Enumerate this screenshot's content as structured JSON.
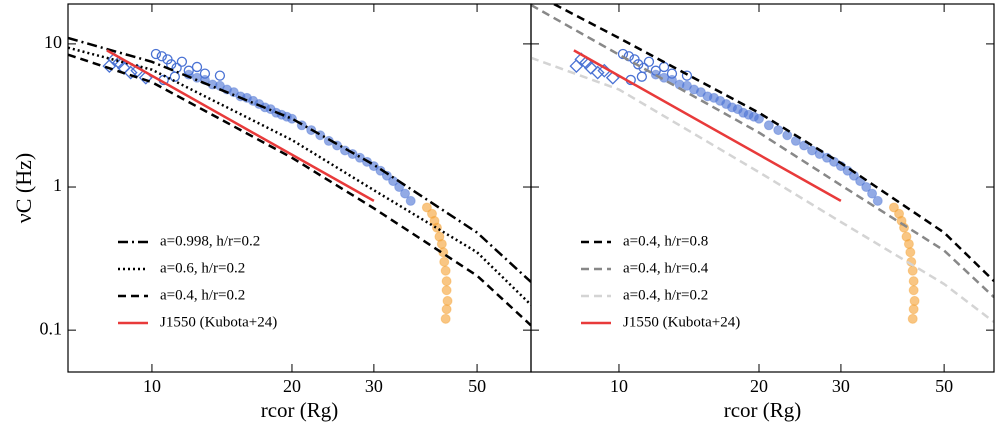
{
  "chart_data": [
    {
      "type": "line",
      "xlabel": "rcor (Rg)",
      "ylabel": "νC (Hz)",
      "log_x": true,
      "log_y": true,
      "xlim": [
        6.6,
        65.3
      ],
      "ylim": [
        0.051,
        19
      ],
      "xticks": [
        10,
        20,
        30,
        50
      ],
      "yticks": [
        0.1,
        1,
        10
      ],
      "ytick_labels": true,
      "legend": "lower left",
      "series": [
        {
          "style": "diamond-open",
          "color": "#4a72d4",
          "x": [
            8.1,
            8.3,
            8.5,
            8.7,
            9.0,
            9.3,
            9.7
          ],
          "values": [
            7.0,
            7.8,
            7.4,
            6.8,
            6.3,
            6.5,
            5.8
          ]
        },
        {
          "style": "circle-open",
          "color": "#4a72d4",
          "x": [
            10.2,
            10.5,
            10.8,
            11,
            11.3,
            11.6,
            12,
            12.5,
            13,
            14,
            10.6,
            11.2
          ],
          "values": [
            8.5,
            8.2,
            7.8,
            7.2,
            6.8,
            7.5,
            6.5,
            6.9,
            6.2,
            6.0,
            5.6,
            5.9
          ]
        },
        {
          "style": "circle-filled",
          "color": "#4a72d4",
          "x": [
            12,
            12.5,
            13,
            13.5,
            14,
            14.5,
            15,
            15.5,
            16,
            16.5,
            17,
            17.5,
            18,
            18.5,
            19,
            19.5,
            20,
            21,
            22,
            23,
            24,
            25,
            26,
            27,
            28,
            29,
            30,
            31,
            32,
            33,
            34,
            35,
            36
          ],
          "values": [
            6.1,
            5.8,
            5.6,
            5.2,
            5.1,
            4.8,
            4.6,
            4.3,
            4.2,
            4.0,
            3.8,
            3.6,
            3.5,
            3.3,
            3.2,
            3.1,
            3.0,
            2.7,
            2.5,
            2.3,
            2.1,
            1.95,
            1.8,
            1.7,
            1.6,
            1.5,
            1.4,
            1.3,
            1.2,
            1.1,
            1.0,
            0.9,
            0.8
          ]
        },
        {
          "style": "circle-filled",
          "color": "#f5a030",
          "x": [
            39,
            40,
            40.5,
            41,
            41.5,
            42,
            42.3,
            42.5,
            42.8,
            43,
            43,
            43.2,
            43,
            42.8
          ],
          "values": [
            0.72,
            0.65,
            0.58,
            0.52,
            0.45,
            0.4,
            0.35,
            0.3,
            0.26,
            0.22,
            0.19,
            0.16,
            0.14,
            0.12
          ]
        },
        {
          "name": "a=0.998, h/r=0.2",
          "style": "dashdot",
          "color": "#000000",
          "x": [
            6.6,
            10,
            20,
            30,
            50,
            65.3
          ],
          "values": [
            11,
            7.5,
            3.0,
            1.43,
            0.48,
            0.217
          ]
        },
        {
          "name": "a=0.6, h/r=0.2",
          "style": "dotted",
          "color": "#000000",
          "x": [
            6.6,
            10,
            20,
            30,
            50,
            65.3
          ],
          "values": [
            9.4,
            6.6,
            2.13,
            0.95,
            0.35,
            0.15
          ]
        },
        {
          "name": "a=0.4, h/r=0.2",
          "style": "dashed",
          "color": "#000000",
          "x": [
            6.6,
            10,
            20,
            30,
            50,
            65.3
          ],
          "values": [
            8.4,
            5.4,
            1.6,
            0.71,
            0.24,
            0.108
          ]
        },
        {
          "name": "J1550 (Kubota+24)",
          "style": "solid",
          "color": "#e83a3a",
          "x": [
            8,
            30
          ],
          "values": [
            9.0,
            0.8
          ]
        }
      ]
    },
    {
      "type": "line",
      "xlabel": "rcor (Rg)",
      "log_x": true,
      "log_y": true,
      "xlim": [
        6.47,
        64
      ],
      "ylim": [
        0.051,
        19
      ],
      "xticks": [
        10,
        20,
        30,
        50
      ],
      "yticks": [
        0.1,
        1,
        10
      ],
      "ytick_labels": false,
      "legend": "lower left",
      "series": [
        {
          "style": "diamond-open",
          "color": "#4a72d4",
          "x": [
            8.1,
            8.3,
            8.5,
            8.7,
            9.0,
            9.3,
            9.7
          ],
          "values": [
            7.0,
            7.8,
            7.4,
            6.8,
            6.3,
            6.5,
            5.8
          ]
        },
        {
          "style": "circle-open",
          "color": "#4a72d4",
          "x": [
            10.2,
            10.5,
            10.8,
            11,
            11.3,
            11.6,
            12,
            12.5,
            13,
            14,
            10.6,
            11.2
          ],
          "values": [
            8.5,
            8.2,
            7.8,
            7.2,
            6.8,
            7.5,
            6.5,
            6.9,
            6.2,
            6.0,
            5.6,
            5.9
          ]
        },
        {
          "style": "circle-filled",
          "color": "#4a72d4",
          "x": [
            12,
            12.5,
            13,
            13.5,
            14,
            14.5,
            15,
            15.5,
            16,
            16.5,
            17,
            17.5,
            18,
            18.5,
            19,
            19.5,
            20,
            21,
            22,
            23,
            24,
            25,
            26,
            27,
            28,
            29,
            30,
            31,
            32,
            33,
            34,
            35,
            36
          ],
          "values": [
            6.1,
            5.8,
            5.6,
            5.2,
            5.1,
            4.8,
            4.6,
            4.3,
            4.2,
            4.0,
            3.8,
            3.6,
            3.5,
            3.3,
            3.2,
            3.1,
            3.0,
            2.7,
            2.5,
            2.3,
            2.1,
            1.95,
            1.8,
            1.7,
            1.6,
            1.5,
            1.4,
            1.3,
            1.2,
            1.1,
            1.0,
            0.9,
            0.8
          ]
        },
        {
          "style": "circle-filled",
          "color": "#f5a030",
          "x": [
            39,
            40,
            40.5,
            41,
            41.5,
            42,
            42.3,
            42.5,
            42.8,
            43,
            43,
            43.2,
            43,
            42.8
          ],
          "values": [
            0.72,
            0.65,
            0.58,
            0.52,
            0.45,
            0.4,
            0.35,
            0.3,
            0.26,
            0.22,
            0.19,
            0.16,
            0.14,
            0.12
          ]
        },
        {
          "name": "a=0.4, h/r=0.8",
          "style": "dashed",
          "color": "#000000",
          "x": [
            6.47,
            10,
            20,
            30,
            50,
            64
          ],
          "values": [
            23,
            11,
            3.3,
            1.47,
            0.48,
            0.22
          ]
        },
        {
          "name": "a=0.4, h/r=0.4",
          "style": "dashed",
          "color": "#888888",
          "x": [
            6.47,
            10,
            20,
            30,
            50,
            64
          ],
          "values": [
            18.7,
            8.4,
            2.4,
            1.03,
            0.36,
            0.17
          ]
        },
        {
          "name": "a=0.4, h/r=0.2",
          "style": "dashed",
          "color": "#d4d4d4",
          "x": [
            6.47,
            10,
            20,
            30,
            50,
            64
          ],
          "values": [
            8,
            4.8,
            1.27,
            0.57,
            0.21,
            0.114
          ]
        },
        {
          "name": "J1550 (Kubota+24)",
          "style": "solid",
          "color": "#e83a3a",
          "x": [
            8,
            30
          ],
          "values": [
            9.0,
            0.8
          ]
        }
      ]
    }
  ]
}
